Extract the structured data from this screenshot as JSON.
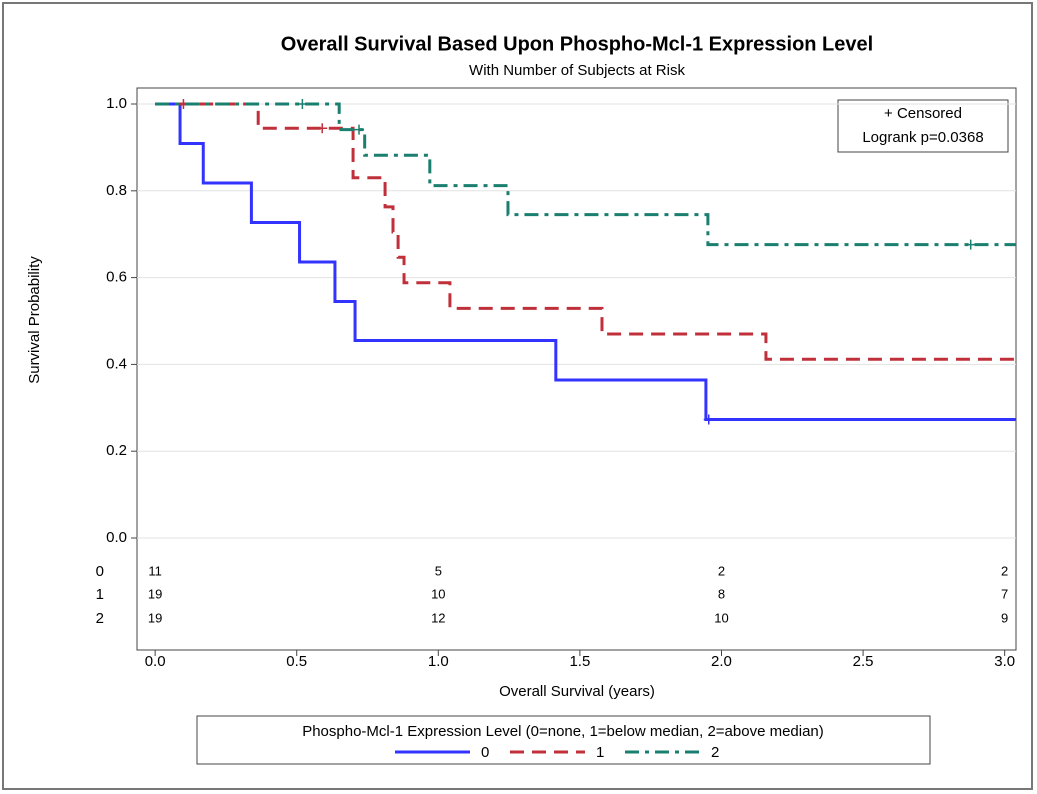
{
  "chart_data": {
    "type": "line",
    "title": "Overall Survival Based Upon Phospho-Mcl-1 Expression Level",
    "subtitle": "With Number of Subjects at Risk",
    "x_label": "Overall Survival (years)",
    "y_label": "Survival Probability",
    "censored_label": "+ Censored",
    "annotation": "Logrank p=0.0368",
    "legend_title": "Phospho-Mcl-1 Expression Level (0=none, 1=below median, 2=above median)",
    "xlim": [
      -0.064,
      3.04
    ],
    "ylim": [
      0,
      1
    ],
    "xticks": [
      {
        "value": 0,
        "label": "0.0"
      },
      0.5,
      {
        "value": 1,
        "label": "1.0"
      },
      1.5,
      {
        "value": 2,
        "label": "2.0"
      },
      2.5,
      {
        "value": 3,
        "label": "3.0"
      }
    ],
    "yticks": [
      {
        "value": 0,
        "label": "0.0"
      },
      0.2,
      0.4,
      0.6,
      0.8,
      {
        "value": 1,
        "label": "1.0"
      }
    ],
    "grid": true,
    "at_risk_x": [
      0,
      1,
      2,
      3
    ],
    "series": [
      {
        "name": "0",
        "color": "#3333ff",
        "dash": "none",
        "x": [
          0,
          0.088,
          0.088,
          0.17,
          0.17,
          0.34,
          0.34,
          0.51,
          0.51,
          0.635,
          0.635,
          0.706,
          0.706,
          1.415,
          1.415,
          1.945,
          1.945,
          3.04
        ],
        "values": [
          1,
          1,
          0.909,
          0.909,
          0.818,
          0.818,
          0.727,
          0.727,
          0.636,
          0.636,
          0.545,
          0.545,
          0.455,
          0.455,
          0.364,
          0.364,
          0.273,
          0.273
        ],
        "censor_x": [
          1.955
        ],
        "censor_y": [
          0.273
        ],
        "at_risk": [
          11,
          5,
          2,
          2
        ]
      },
      {
        "name": "1",
        "color": "#c0303a",
        "dash": "14,8",
        "x": [
          0,
          0.364,
          0.364,
          0.699,
          0.699,
          0.812,
          0.812,
          0.84,
          0.84,
          0.858,
          0.858,
          0.879,
          0.879,
          1.041,
          1.041,
          1.578,
          1.578,
          2.157,
          2.157,
          3.04
        ],
        "values": [
          1,
          1,
          0.944,
          0.944,
          0.83,
          0.83,
          0.763,
          0.763,
          0.705,
          0.705,
          0.647,
          0.647,
          0.588,
          0.588,
          0.529,
          0.529,
          0.47,
          0.47,
          0.412,
          0.412
        ],
        "censor_x": [
          0.1,
          0.59
        ],
        "censor_y": [
          1,
          0.944
        ],
        "at_risk": [
          19,
          10,
          8,
          7
        ]
      },
      {
        "name": "2",
        "color": "#1a7f6e",
        "dash": "14,6,4,6",
        "x": [
          0,
          0.65,
          0.65,
          0.74,
          0.74,
          0.97,
          0.97,
          1.246,
          1.246,
          1.952,
          1.952,
          3.04
        ],
        "values": [
          1,
          1,
          0.941,
          0.941,
          0.882,
          0.882,
          0.812,
          0.812,
          0.745,
          0.745,
          0.676,
          0.676
        ],
        "censor_x": [
          0.52,
          0.72,
          2.88
        ],
        "censor_y": [
          1,
          0.941,
          0.676
        ],
        "at_risk": [
          19,
          12,
          10,
          9
        ]
      }
    ]
  }
}
